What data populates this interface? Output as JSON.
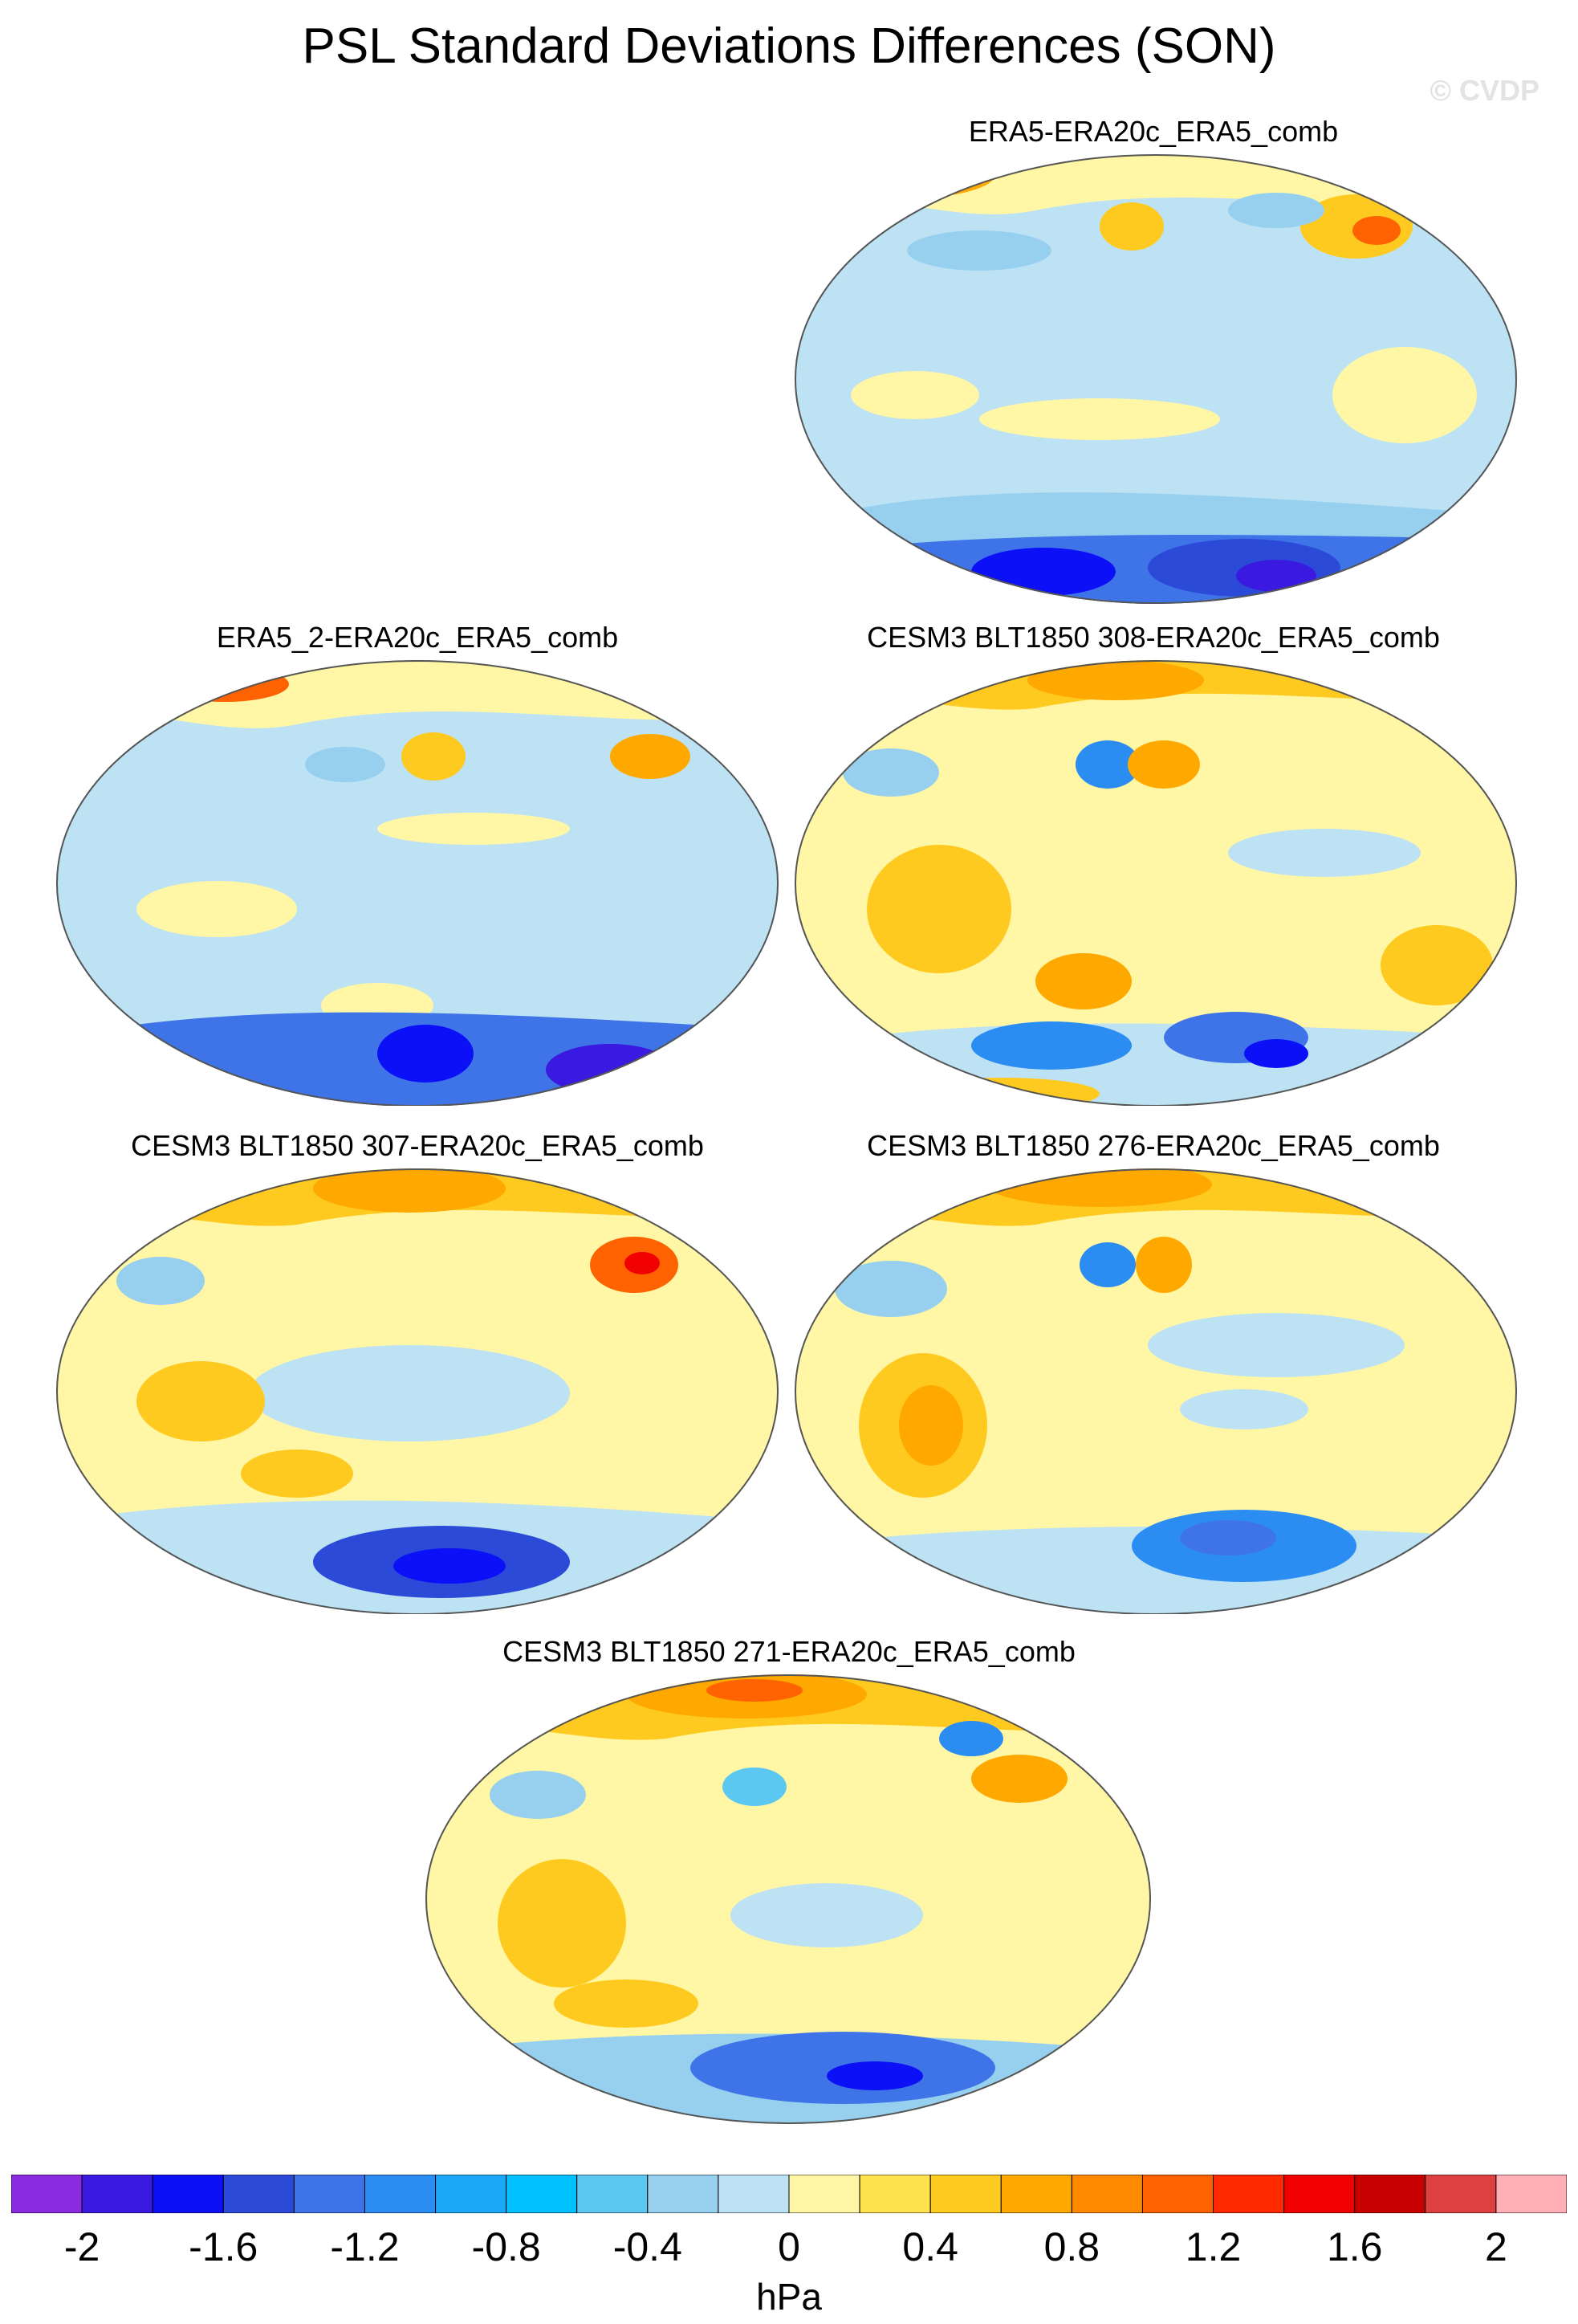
{
  "title": "PSL Standard Deviations Differences (SON)",
  "watermark": "© CVDP",
  "panels": [
    {
      "label": "ERA5-ERA20c_ERA5_comb"
    },
    {
      "label": "ERA5_2-ERA20c_ERA5_comb"
    },
    {
      "label": "CESM3 BLT1850 308-ERA20c_ERA5_comb"
    },
    {
      "label": "CESM3 BLT1850 307-ERA20c_ERA5_comb"
    },
    {
      "label": "CESM3 BLT1850 276-ERA20c_ERA5_comb"
    },
    {
      "label": "CESM3 BLT1850 271-ERA20c_ERA5_comb"
    }
  ],
  "colorbar": {
    "unit": "hPa",
    "colors": [
      "#8a2be2",
      "#3a1ae0",
      "#0b10f6",
      "#2c4ad8",
      "#3f74e8",
      "#2b8df2",
      "#1aa8f7",
      "#00c0ff",
      "#5cc8f2",
      "#97d0ef",
      "#bde2f4",
      "#fff7a6",
      "#ffe24d",
      "#ffca1f",
      "#ffa800",
      "#ff8a00",
      "#ff6200",
      "#ff2a00",
      "#f00000",
      "#c80000",
      "#de4040",
      "#ffb0b6"
    ],
    "ticks": [
      "-2",
      "-1.6",
      "-1.2",
      "-0.8",
      "-0.4",
      "0",
      "0.4",
      "0.8",
      "1.2",
      "1.6",
      "2"
    ]
  }
}
